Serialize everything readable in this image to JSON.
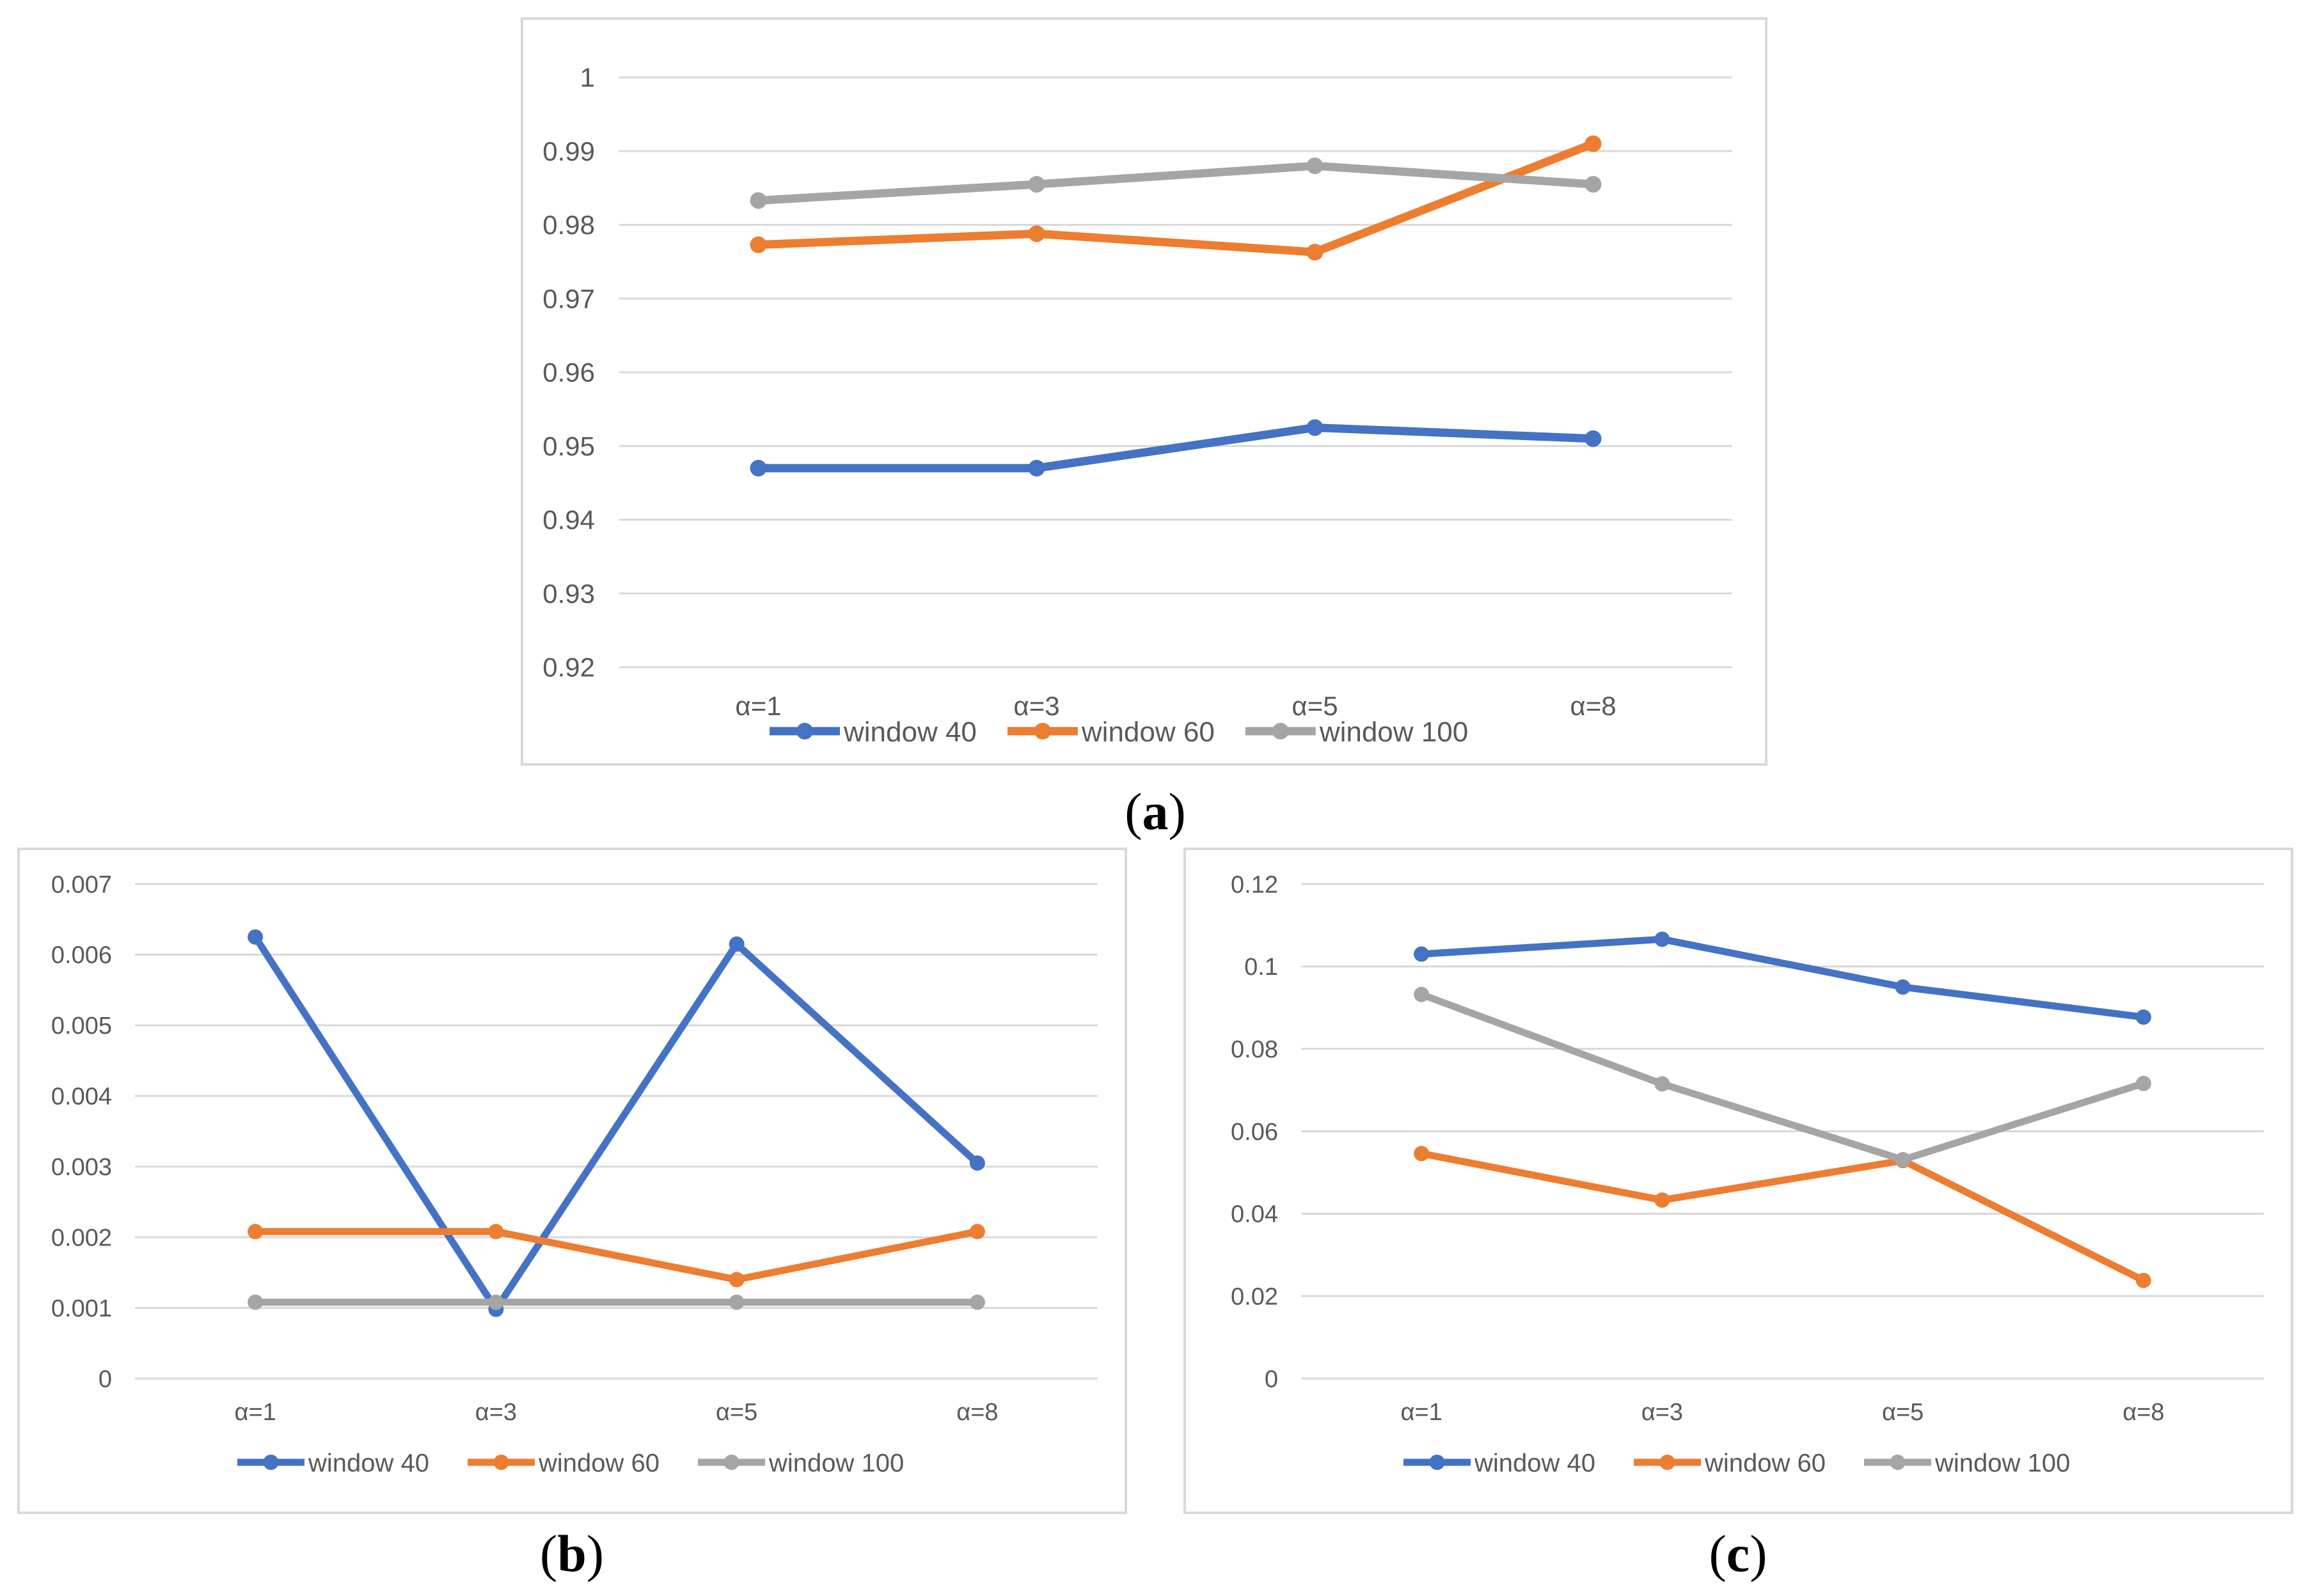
{
  "captions": {
    "a": {
      "open": "(",
      "letter": "a",
      "close": ")"
    },
    "b": {
      "open": "(",
      "letter": "b",
      "close": ")"
    },
    "c": {
      "open": "(",
      "letter": "c",
      "close": ")"
    }
  },
  "colors": {
    "window40": "#4472C4",
    "window60": "#ED7D31",
    "window100": "#A5A5A5",
    "gridline": "#D9D9D9",
    "axis_text": "#595959"
  },
  "chart_data": [
    {
      "id": "a",
      "type": "line",
      "title": "",
      "xlabel": "",
      "ylabel": "",
      "categories": [
        "α=1",
        "α=3",
        "α=5",
        "α=8"
      ],
      "y_ticks": [
        "0.92",
        "0.93",
        "0.94",
        "0.95",
        "0.96",
        "0.97",
        "0.98",
        "0.99",
        "1"
      ],
      "ylim": [
        0.92,
        1.0
      ],
      "grid": true,
      "legend_position": "bottom",
      "series": [
        {
          "name": "window 40",
          "color_key": "window40",
          "values": [
            0.947,
            0.947,
            0.9525,
            0.951
          ]
        },
        {
          "name": "window 60",
          "color_key": "window60",
          "values": [
            0.9773,
            0.9788,
            0.9763,
            0.991
          ]
        },
        {
          "name": "window 100",
          "color_key": "window100",
          "values": [
            0.9833,
            0.9855,
            0.988,
            0.9855
          ]
        }
      ]
    },
    {
      "id": "b",
      "type": "line",
      "title": "",
      "xlabel": "",
      "ylabel": "",
      "categories": [
        "α=1",
        "α=3",
        "α=5",
        "α=8"
      ],
      "y_ticks": [
        "0",
        "0.001",
        "0.002",
        "0.003",
        "0.004",
        "0.005",
        "0.006",
        "0.007"
      ],
      "ylim": [
        0,
        0.007
      ],
      "grid": true,
      "legend_position": "bottom",
      "series": [
        {
          "name": "window 40",
          "color_key": "window40",
          "values": [
            0.00625,
            0.00098,
            0.00615,
            0.00305
          ]
        },
        {
          "name": "window 60",
          "color_key": "window60",
          "values": [
            0.00208,
            0.00208,
            0.0014,
            0.00208
          ]
        },
        {
          "name": "window 100",
          "color_key": "window100",
          "values": [
            0.00108,
            0.00108,
            0.00108,
            0.00108
          ]
        }
      ]
    },
    {
      "id": "c",
      "type": "line",
      "title": "",
      "xlabel": "",
      "ylabel": "",
      "categories": [
        "α=1",
        "α=3",
        "α=5",
        "α=8"
      ],
      "y_ticks": [
        "0",
        "0.02",
        "0.04",
        "0.06",
        "0.08",
        "0.1",
        "0.12"
      ],
      "ylim": [
        0,
        0.12
      ],
      "grid": true,
      "legend_position": "bottom",
      "series": [
        {
          "name": "window 40",
          "color_key": "window40",
          "values": [
            0.103,
            0.1066,
            0.095,
            0.0877
          ]
        },
        {
          "name": "window 60",
          "color_key": "window60",
          "values": [
            0.0546,
            0.0433,
            0.0529,
            0.0238
          ]
        },
        {
          "name": "window 100",
          "color_key": "window100",
          "values": [
            0.0932,
            0.0715,
            0.0531,
            0.0716
          ]
        }
      ]
    }
  ]
}
